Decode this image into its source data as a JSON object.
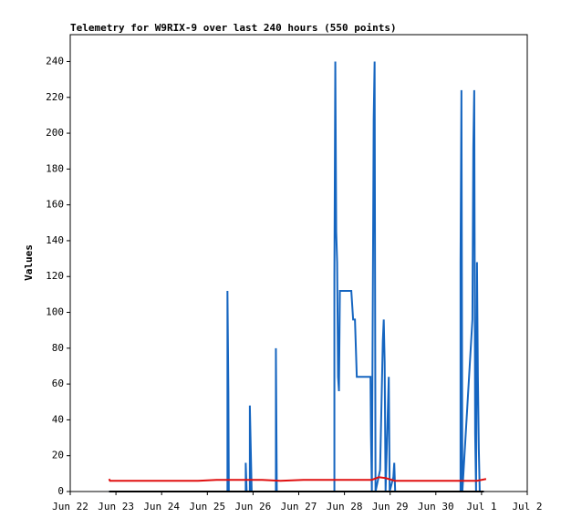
{
  "chart_data": {
    "type": "line",
    "title": "Telemetry for W9RIX-9 over last 240 hours (550 points)",
    "y_label": "Values",
    "xlim": [
      0,
      10
    ],
    "ylim": [
      0,
      255
    ],
    "xticks": [
      {
        "value": 0,
        "label": "Jun 22"
      },
      {
        "value": 1,
        "label": "Jun 23"
      },
      {
        "value": 2,
        "label": "Jun 24"
      },
      {
        "value": 3,
        "label": "Jun 25"
      },
      {
        "value": 4,
        "label": "Jun 26"
      },
      {
        "value": 5,
        "label": "Jun 27"
      },
      {
        "value": 6,
        "label": "Jun 28"
      },
      {
        "value": 7,
        "label": "Jun 29"
      },
      {
        "value": 8,
        "label": "Jun 30"
      },
      {
        "value": 9,
        "label": "Jul 1"
      },
      {
        "value": 10,
        "label": "Jul 2"
      }
    ],
    "yticks": [
      0,
      20,
      40,
      60,
      80,
      100,
      120,
      140,
      160,
      180,
      200,
      220,
      240
    ],
    "series": [
      {
        "color": "#1565c0",
        "x": [
          0.85,
          3.44,
          3.44,
          3.46,
          3.47,
          3.84,
          3.84,
          3.86,
          3.93,
          3.93,
          3.95,
          3.97,
          4.5,
          4.5,
          4.52,
          5.78,
          5.78,
          5.8,
          5.82,
          5.84,
          5.86,
          5.88,
          5.9,
          6.15,
          6.17,
          6.19,
          6.23,
          6.25,
          6.27,
          6.57,
          6.58,
          6.6,
          6.62,
          6.64,
          6.66,
          6.68,
          6.78,
          6.82,
          6.84,
          6.86,
          6.88,
          6.9,
          6.97,
          6.99,
          7.07,
          7.09,
          7.11,
          8.54,
          8.54,
          8.56,
          8.58,
          8.8,
          8.82,
          8.84,
          8.86,
          8.88,
          8.9,
          8.92,
          8.94,
          8.96,
          9.05
        ],
        "values": [
          0,
          0,
          112,
          56,
          0,
          0,
          16,
          0,
          0,
          48,
          24,
          0,
          0,
          80,
          0,
          0,
          120,
          240,
          145,
          128,
          64,
          56,
          112,
          112,
          104,
          96,
          96,
          80,
          64,
          64,
          32,
          0,
          104,
          208,
          240,
          0,
          12,
          60,
          84,
          96,
          72,
          0,
          64,
          0,
          8,
          16,
          0,
          0,
          128,
          224,
          0,
          96,
          192,
          224,
          32,
          0,
          128,
          64,
          24,
          0,
          0
        ]
      },
      {
        "color": "#e01010",
        "x": [
          0.85,
          0.87,
          2.8,
          3.2,
          4.2,
          4.6,
          5.1,
          6.6,
          6.75,
          6.9,
          7.1,
          8.9,
          9.1
        ],
        "values": [
          7,
          6,
          6,
          6.5,
          6.5,
          6,
          6.5,
          6.5,
          8,
          7.5,
          6,
          6,
          7
        ]
      },
      {
        "color": "#000000",
        "x": [
          0.85,
          9.05
        ],
        "values": [
          0,
          0
        ]
      }
    ]
  }
}
